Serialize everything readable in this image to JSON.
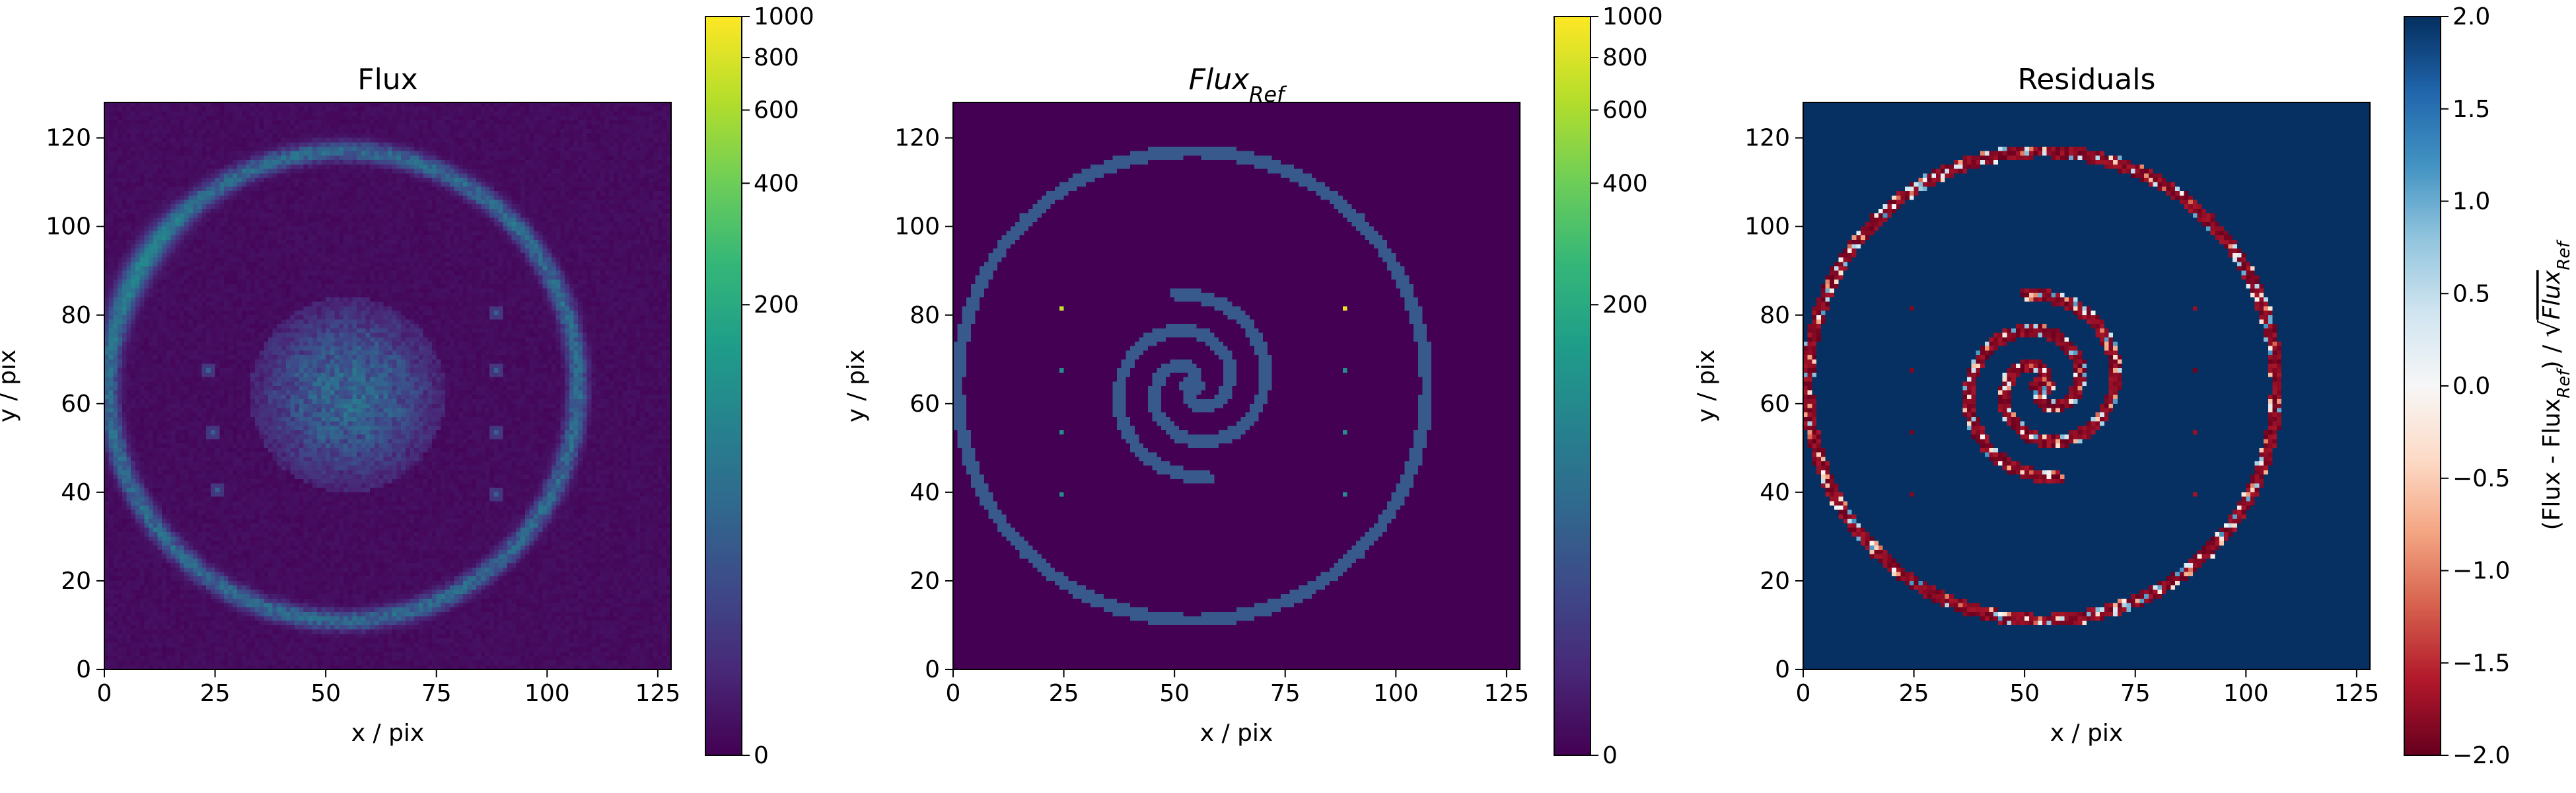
{
  "colors": {
    "viridis": [
      "#440154",
      "#482878",
      "#3e4989",
      "#31688e",
      "#26828e",
      "#1f9e89",
      "#35b779",
      "#6ece58",
      "#b5de2b",
      "#fde725"
    ],
    "rdbu": [
      "#67001f",
      "#b2182b",
      "#d6604d",
      "#f4a582",
      "#fddbc7",
      "#f7f7f7",
      "#d1e5f0",
      "#92c5de",
      "#4393c3",
      "#2166ac",
      "#053061"
    ]
  },
  "chart_data": [
    {
      "type": "heatmap",
      "title": "Flux",
      "xlabel": "x / pix",
      "ylabel": "y / pix",
      "xlim": [
        0,
        128
      ],
      "ylim": [
        0,
        128
      ],
      "x_ticks": [
        0,
        25,
        50,
        75,
        100,
        125
      ],
      "y_ticks": [
        0,
        20,
        40,
        60,
        80,
        100,
        120
      ],
      "colormap": "viridis",
      "colorbar": {
        "scale": "log",
        "ticks": [
          0,
          200,
          400,
          600,
          800,
          1000
        ],
        "labels": [
          "0",
          "200",
          "400",
          "600",
          "800",
          "1000"
        ]
      },
      "features": {
        "ring": {
          "center": [
            54,
            64
          ],
          "radius": 53,
          "value": 60
        },
        "spiral_blob": {
          "center": [
            55,
            62
          ],
          "radius": 18,
          "value": 50
        },
        "point_sources": [
          [
            23,
            67
          ],
          [
            24,
            53
          ],
          [
            25,
            40
          ],
          [
            88,
            80
          ],
          [
            88,
            67
          ],
          [
            88,
            53
          ],
          [
            88,
            39
          ]
        ]
      }
    },
    {
      "type": "heatmap",
      "title": "Flux",
      "title_subscript": "Ref",
      "xlabel": "x / pix",
      "ylabel": "y / pix",
      "xlim": [
        0,
        128
      ],
      "ylim": [
        0,
        128
      ],
      "x_ticks": [
        0,
        25,
        50,
        75,
        100,
        125
      ],
      "y_ticks": [
        0,
        20,
        40,
        60,
        80,
        100,
        120
      ],
      "colormap": "viridis",
      "colorbar": {
        "scale": "log",
        "ticks": [
          0,
          200,
          400,
          600,
          800,
          1000
        ],
        "labels": [
          "0",
          "200",
          "400",
          "600",
          "800",
          "1000"
        ]
      },
      "features": {
        "ring": {
          "center": [
            54,
            64
          ],
          "radius": 53,
          "value": 40
        },
        "spiral_arms": 2,
        "spiral_max_radius": 21,
        "point_sources": [
          [
            24,
            81
          ],
          [
            24,
            67
          ],
          [
            24,
            53
          ],
          [
            24,
            39
          ],
          [
            88,
            81
          ],
          [
            88,
            67
          ],
          [
            88,
            53
          ],
          [
            88,
            39
          ]
        ]
      }
    },
    {
      "type": "heatmap",
      "title": "Residuals",
      "xlabel": "x / pix",
      "ylabel": "y / pix",
      "xlim": [
        0,
        128
      ],
      "ylim": [
        0,
        128
      ],
      "x_ticks": [
        0,
        25,
        50,
        75,
        100,
        125
      ],
      "y_ticks": [
        0,
        20,
        40,
        60,
        80,
        100,
        120
      ],
      "colormap": "RdBu",
      "colorbar": {
        "scale": "linear",
        "range": [
          -2.0,
          2.0
        ],
        "ticks": [
          -2.0,
          -1.5,
          -1.0,
          -0.5,
          0.0,
          0.5,
          1.0,
          1.5,
          2.0
        ],
        "labels": [
          "−2.0",
          "−1.5",
          "−1.0",
          "−0.5",
          "0.0",
          "0.5",
          "1.0",
          "1.5",
          "2.0"
        ],
        "label": "(Flux - Flux_Ref) / √Flux_Ref",
        "label_parts": [
          "(Flux - Flux",
          "Ref",
          ") / ",
          "√",
          "Flux",
          "Ref"
        ]
      },
      "background_value": 2.0,
      "structure_value_range": [
        -2.0,
        1.0
      ]
    }
  ]
}
